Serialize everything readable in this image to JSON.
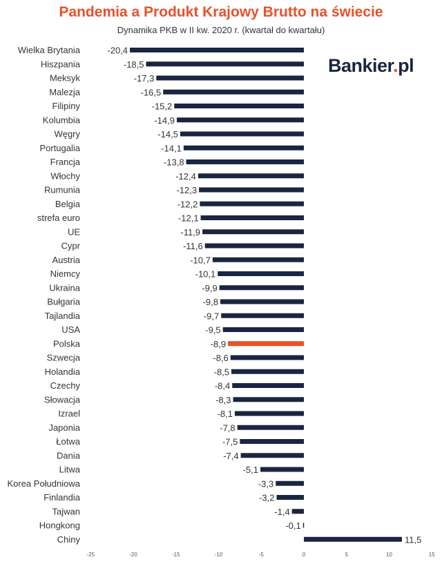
{
  "header": {
    "title": "Pandemia a Produkt Krajowy Brutto na świecie",
    "subtitle": "Dynamika PKB w II kw. 2020 r.  (kwartał do kwartału)"
  },
  "logo": {
    "name": "Bankier",
    "dot": ".",
    "tld": "pl"
  },
  "colors": {
    "bar": "#1a2640",
    "highlight": "#e8512a",
    "title": "#e8512a"
  },
  "chart_data": {
    "type": "bar",
    "orientation": "horizontal",
    "highlight_category": "Polska",
    "xlim": [
      -25,
      15
    ],
    "xticks": [
      -25,
      -20,
      -15,
      -10,
      -5,
      0,
      5,
      10,
      15
    ],
    "grid": false,
    "categories": [
      "Wielka Brytania",
      "Hiszpania",
      "Meksyk",
      "Malezja",
      "Filipiny",
      "Kolumbia",
      "Węgry",
      "Portugalia",
      "Francja",
      "Włochy",
      "Rumunia",
      "Belgia",
      "strefa euro",
      "UE",
      "Cypr",
      "Austria",
      "Niemcy",
      "Ukraina",
      "Bułgaria",
      "Tajlandia",
      "USA",
      "Polska",
      "Szwecja",
      "Holandia",
      "Czechy",
      "Słowacja",
      "Izrael",
      "Japonia",
      "Łotwa",
      "Dania",
      "Litwa",
      "Korea Południowa",
      "Finlandia",
      "Tajwan",
      "Hongkong",
      "Chiny"
    ],
    "values": [
      -20.4,
      -18.5,
      -17.3,
      -16.5,
      -15.2,
      -14.9,
      -14.5,
      -14.1,
      -13.8,
      -12.4,
      -12.3,
      -12.2,
      -12.1,
      -11.9,
      -11.6,
      -10.7,
      -10.1,
      -9.9,
      -9.8,
      -9.7,
      -9.5,
      -8.9,
      -8.6,
      -8.5,
      -8.4,
      -8.3,
      -8.1,
      -7.8,
      -7.5,
      -7.4,
      -5.1,
      -3.3,
      -3.2,
      -1.4,
      -0.1,
      11.5
    ],
    "labels": [
      "-20,4",
      "-18,5",
      "-17,3",
      "-16,5",
      "-15,2",
      "-14,9",
      "-14,5",
      "-14,1",
      "-13,8",
      "-12,4",
      "-12,3",
      "-12,2",
      "-12,1",
      "-11,9",
      "-11,6",
      "-10,7",
      "-10,1",
      "-9,9",
      "-9,8",
      "-9,7",
      "-9,5",
      "-8,9",
      "-8,6",
      "-8,5",
      "-8,4",
      "-8,3",
      "-8,1",
      "-7,8",
      "-7,5",
      "-7,4",
      "-5,1",
      "-3,3",
      "-3,2",
      "-1,4",
      "-0,1",
      "11,5"
    ]
  }
}
